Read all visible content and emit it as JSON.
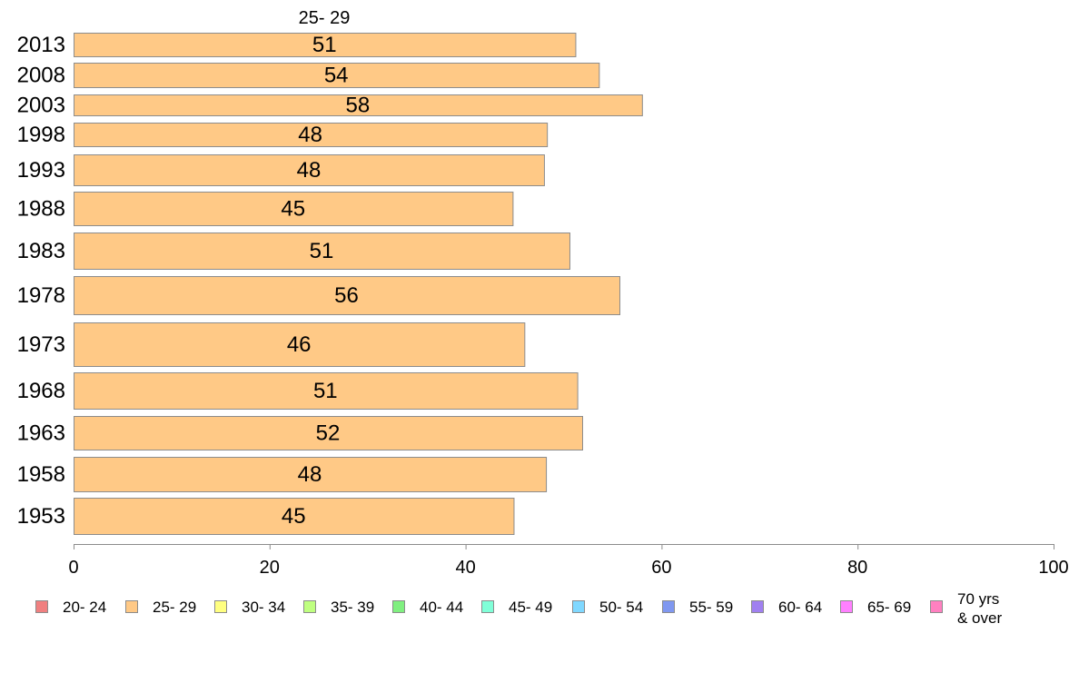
{
  "chart_data": {
    "type": "bar",
    "orientation": "horizontal",
    "series_label": "25- 29",
    "categories": [
      "2013",
      "2008",
      "2003",
      "1998",
      "1993",
      "1988",
      "1983",
      "1978",
      "1973",
      "1968",
      "1963",
      "1958",
      "1953"
    ],
    "series": [
      {
        "name": "25- 29",
        "color": "#FFC986",
        "values": [
          51.2,
          53.6,
          58.0,
          48.3,
          48.0,
          44.8,
          50.6,
          55.7,
          46.0,
          51.4,
          51.9,
          48.2,
          44.9
        ],
        "labels": [
          "51",
          "54",
          "58",
          "48",
          "48",
          "45",
          "51",
          "56",
          "46",
          "51",
          "52",
          "48",
          "45"
        ]
      }
    ],
    "xlim": [
      0,
      100
    ],
    "x_ticks": [
      "0",
      "20",
      "40",
      "60",
      "80",
      "100"
    ],
    "grid": false,
    "legend_position": "bottom",
    "legend": [
      {
        "label": "20- 24",
        "color": "#F08080"
      },
      {
        "label": "25- 29",
        "color": "#FFC986"
      },
      {
        "label": "30- 34",
        "color": "#FFFF80"
      },
      {
        "label": "35- 39",
        "color": "#BFFF80"
      },
      {
        "label": "40- 44",
        "color": "#80F080"
      },
      {
        "label": "45- 49",
        "color": "#80FFD8"
      },
      {
        "label": "50- 54",
        "color": "#80D8FF"
      },
      {
        "label": "55- 59",
        "color": "#8098F0"
      },
      {
        "label": "60- 64",
        "color": "#A080F0"
      },
      {
        "label": "65- 69",
        "color": "#FF80FF"
      },
      {
        "label": "70 yrs\n& over",
        "color": "#FF80C0"
      }
    ]
  }
}
